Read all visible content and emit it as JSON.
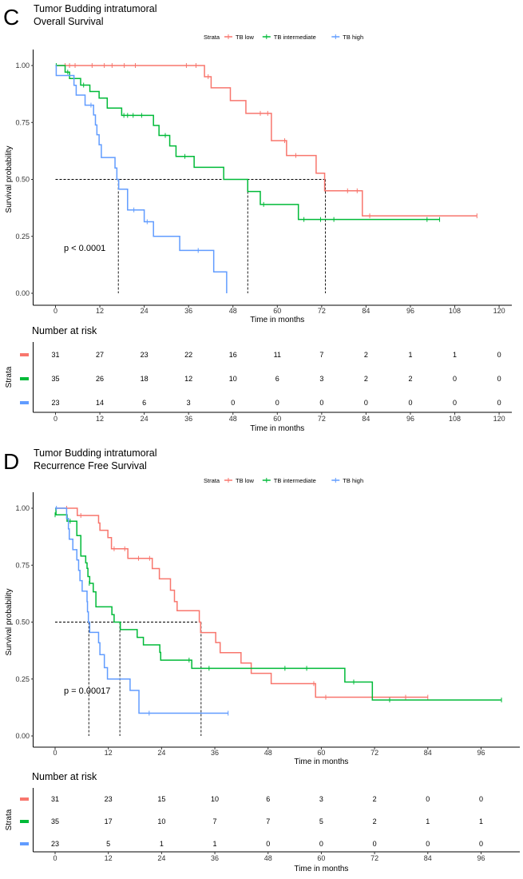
{
  "chart_data": [
    {
      "type": "line",
      "panel_letter": "C",
      "title": "Tumor Budding intratumoral",
      "subtitle": "Overall Survival",
      "legend": {
        "title": "Strata",
        "placement": "top",
        "entries": [
          "TB low",
          "TB intermediate",
          "TB high"
        ]
      },
      "xlabel": "Time in months",
      "ylabel": "Survival probability",
      "xlim": [
        0,
        125
      ],
      "ylim": [
        0,
        1
      ],
      "x_ticks": [
        "0",
        "12",
        "24",
        "36",
        "48",
        "60",
        "72",
        "84",
        "96",
        "108",
        "120"
      ],
      "y_ticks": [
        "0.00",
        "0.25",
        "0.50",
        "0.75",
        "1.00"
      ],
      "grid": false,
      "p_value": "p < 0.0001",
      "medians": [
        17,
        52,
        73
      ],
      "series": [
        {
          "name": "TB low",
          "color": "#F8766D",
          "steps": [
            [
              0,
              1.0
            ],
            [
              40.3,
              0.951
            ],
            [
              42.1,
              0.902
            ],
            [
              47.3,
              0.846
            ],
            [
              51.5,
              0.79
            ],
            [
              58.4,
              0.67
            ],
            [
              62.5,
              0.605
            ],
            [
              70.5,
              0.527
            ],
            [
              72.8,
              0.45
            ],
            [
              83,
              0.34
            ]
          ],
          "end": 114,
          "censored": [
            [
              2.6,
              1
            ],
            [
              3.8,
              1
            ],
            [
              5.3,
              1
            ],
            [
              9.9,
              1
            ],
            [
              13.2,
              1
            ],
            [
              15.3,
              1
            ],
            [
              18.6,
              1
            ],
            [
              21.6,
              1
            ],
            [
              35.4,
              1
            ],
            [
              38,
              1
            ],
            [
              41.3,
              0.951
            ],
            [
              55.4,
              0.79
            ],
            [
              57.4,
              0.79
            ],
            [
              62,
              0.67
            ],
            [
              65,
              0.605
            ],
            [
              79,
              0.45
            ],
            [
              81.6,
              0.45
            ],
            [
              85,
              0.34
            ],
            [
              114,
              0.34
            ]
          ]
        },
        {
          "name": "TB intermediate",
          "color": "#00BA38",
          "steps": [
            [
              0,
              1.0
            ],
            [
              2.6,
              0.971
            ],
            [
              3.8,
              0.943
            ],
            [
              6.8,
              0.914
            ],
            [
              9.3,
              0.886
            ],
            [
              11.8,
              0.857
            ],
            [
              14,
              0.813
            ],
            [
              17.9,
              0.781
            ],
            [
              26.5,
              0.737
            ],
            [
              28,
              0.693
            ],
            [
              30.9,
              0.647
            ],
            [
              32.6,
              0.601
            ],
            [
              37.5,
              0.553
            ],
            [
              45.5,
              0.5
            ],
            [
              52,
              0.447
            ],
            [
              55.4,
              0.39
            ],
            [
              65.7,
              0.324
            ]
          ],
          "end": 103.9,
          "censored": [
            [
              0.2,
              1
            ],
            [
              3.3,
              0.971
            ],
            [
              7.6,
              0.914
            ],
            [
              18.5,
              0.781
            ],
            [
              19.5,
              0.781
            ],
            [
              21,
              0.781
            ],
            [
              23.3,
              0.781
            ],
            [
              29.7,
              0.693
            ],
            [
              35,
              0.601
            ],
            [
              56.3,
              0.39
            ],
            [
              67.2,
              0.324
            ],
            [
              71.7,
              0.324
            ],
            [
              75.3,
              0.324
            ],
            [
              100.5,
              0.324
            ],
            [
              103.9,
              0.324
            ]
          ]
        },
        {
          "name": "TB high",
          "color": "#619CFF",
          "steps": [
            [
              0,
              1.0
            ],
            [
              0.2,
              0.956
            ],
            [
              5.0,
              0.913
            ],
            [
              5.6,
              0.87
            ],
            [
              8,
              0.826
            ],
            [
              10.3,
              0.783
            ],
            [
              10.8,
              0.739
            ],
            [
              11.2,
              0.696
            ],
            [
              11.8,
              0.652
            ],
            [
              12.4,
              0.596
            ],
            [
              16.1,
              0.55
            ],
            [
              16.6,
              0.5
            ],
            [
              17.1,
              0.457
            ],
            [
              19.5,
              0.366
            ],
            [
              24,
              0.314
            ],
            [
              26.5,
              0.25
            ],
            [
              33.6,
              0.188
            ],
            [
              42.8,
              0.094
            ],
            [
              46.3,
              0.0
            ]
          ],
          "end": 46.3,
          "censored": [
            [
              9.6,
              0.826
            ],
            [
              21.2,
              0.366
            ],
            [
              24.8,
              0.314
            ],
            [
              38.6,
              0.188
            ]
          ]
        }
      ],
      "risk_table": {
        "title": "Number at risk",
        "ylabel": "Strata",
        "xlabel": "Time in months",
        "times": [
          "0",
          "12",
          "24",
          "36",
          "48",
          "60",
          "72",
          "84",
          "96",
          "108",
          "120"
        ],
        "rows": [
          {
            "color": "#F8766D",
            "values": [
              "31",
              "27",
              "23",
              "22",
              "16",
              "11",
              "7",
              "2",
              "1",
              "1",
              "0"
            ]
          },
          {
            "color": "#00BA38",
            "values": [
              "35",
              "26",
              "18",
              "12",
              "10",
              "6",
              "3",
              "2",
              "2",
              "0",
              "0"
            ]
          },
          {
            "color": "#619CFF",
            "values": [
              "23",
              "14",
              "6",
              "3",
              "0",
              "0",
              "0",
              "0",
              "0",
              "0",
              "0"
            ]
          }
        ]
      }
    },
    {
      "type": "line",
      "panel_letter": "D",
      "title": "Tumor Budding intratumoral",
      "subtitle": "Recurrence Free Survival",
      "legend": {
        "title": "Strata",
        "placement": "top",
        "entries": [
          "TB low",
          "TB intermediate",
          "TB high"
        ]
      },
      "xlabel": "Time in months",
      "ylabel": "Survival probability",
      "xlim": [
        0,
        105
      ],
      "ylim": [
        0,
        1
      ],
      "x_ticks": [
        "0",
        "12",
        "24",
        "36",
        "48",
        "60",
        "72",
        "84",
        "96"
      ],
      "y_ticks": [
        "0.00",
        "0.25",
        "0.50",
        "0.75",
        "1.00"
      ],
      "grid": false,
      "p_value": "p = 0.00017",
      "medians": [
        7.6,
        14.6,
        32.9
      ],
      "series": [
        {
          "name": "TB low",
          "color": "#F8766D",
          "steps": [
            [
              0,
              1.0
            ],
            [
              5,
              0.968
            ],
            [
              9.8,
              0.935
            ],
            [
              10.1,
              0.903
            ],
            [
              11.9,
              0.871
            ],
            [
              12.7,
              0.822
            ],
            [
              16.4,
              0.78
            ],
            [
              21.9,
              0.735
            ],
            [
              23.5,
              0.69
            ],
            [
              26,
              0.64
            ],
            [
              26.9,
              0.59
            ],
            [
              27.5,
              0.55
            ],
            [
              32.5,
              0.5
            ],
            [
              32.8,
              0.454
            ],
            [
              36.2,
              0.41
            ],
            [
              37.2,
              0.366
            ],
            [
              41.9,
              0.32
            ],
            [
              44.2,
              0.275
            ],
            [
              48.7,
              0.23
            ],
            [
              58.7,
              0.17
            ]
          ],
          "end": 84,
          "censored": [
            [
              2.6,
              1
            ],
            [
              5.8,
              0.968
            ],
            [
              13.3,
              0.822
            ],
            [
              15.7,
              0.822
            ],
            [
              18.8,
              0.78
            ],
            [
              21.3,
              0.78
            ],
            [
              58.3,
              0.23
            ],
            [
              61,
              0.17
            ],
            [
              79,
              0.17
            ],
            [
              84,
              0.17
            ]
          ]
        },
        {
          "name": "TB intermediate",
          "color": "#00BA38",
          "steps": [
            [
              0,
              1.0
            ],
            [
              0.2,
              0.971
            ],
            [
              2.7,
              0.943
            ],
            [
              4.9,
              0.88
            ],
            [
              5.8,
              0.79
            ],
            [
              6.9,
              0.76
            ],
            [
              7.2,
              0.736
            ],
            [
              7.4,
              0.7
            ],
            [
              7.8,
              0.67
            ],
            [
              8.6,
              0.633
            ],
            [
              9.2,
              0.567
            ],
            [
              12.8,
              0.533
            ],
            [
              13.3,
              0.5
            ],
            [
              14.7,
              0.467
            ],
            [
              18.5,
              0.433
            ],
            [
              19.9,
              0.4
            ],
            [
              23.6,
              0.367
            ],
            [
              23.8,
              0.333
            ],
            [
              30.8,
              0.297
            ],
            [
              65.3,
              0.237
            ],
            [
              71.5,
              0.158
            ]
          ],
          "end": 100.6,
          "censored": [
            [
              0,
              0.971
            ],
            [
              3.4,
              0.943
            ],
            [
              7.7,
              0.67
            ],
            [
              30.2,
              0.333
            ],
            [
              34.7,
              0.297
            ],
            [
              51.8,
              0.297
            ],
            [
              56.7,
              0.297
            ],
            [
              67.3,
              0.237
            ],
            [
              75.4,
              0.158
            ],
            [
              100.6,
              0.158
            ]
          ]
        },
        {
          "name": "TB high",
          "color": "#619CFF",
          "steps": [
            [
              0,
              1.0
            ],
            [
              2.6,
              0.955
            ],
            [
              3.0,
              0.909
            ],
            [
              3.2,
              0.864
            ],
            [
              4.0,
              0.818
            ],
            [
              4.9,
              0.773
            ],
            [
              5.3,
              0.727
            ],
            [
              5.6,
              0.682
            ],
            [
              6.1,
              0.636
            ],
            [
              7.2,
              0.59
            ],
            [
              7.3,
              0.545
            ],
            [
              7.5,
              0.5
            ],
            [
              7.8,
              0.455
            ],
            [
              9.8,
              0.409
            ],
            [
              10.1,
              0.357
            ],
            [
              11.1,
              0.3
            ],
            [
              11.8,
              0.25
            ],
            [
              16.9,
              0.2
            ],
            [
              18.9,
              0.1
            ]
          ],
          "end": 39,
          "censored": [
            [
              0.3,
              1
            ],
            [
              21.2,
              0.1
            ],
            [
              39,
              0.1
            ]
          ]
        }
      ],
      "risk_table": {
        "title": "Number at risk",
        "ylabel": "Strata",
        "xlabel": "Time in months",
        "times": [
          "0",
          "12",
          "24",
          "36",
          "48",
          "60",
          "72",
          "84",
          "96"
        ],
        "rows": [
          {
            "color": "#F8766D",
            "values": [
              "31",
              "23",
              "15",
              "10",
              "6",
              "3",
              "2",
              "0",
              "0"
            ]
          },
          {
            "color": "#00BA38",
            "values": [
              "35",
              "17",
              "10",
              "7",
              "7",
              "5",
              "2",
              "1",
              "1"
            ]
          },
          {
            "color": "#619CFF",
            "values": [
              "23",
              "5",
              "1",
              "1",
              "0",
              "0",
              "0",
              "0",
              "0"
            ]
          }
        ]
      }
    }
  ]
}
